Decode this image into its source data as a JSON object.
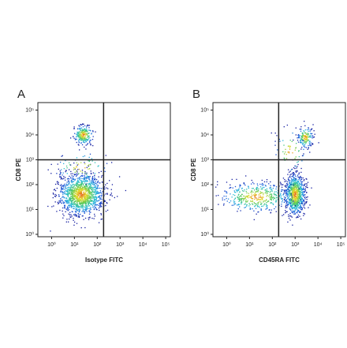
{
  "chart_data": [
    {
      "type": "scatter",
      "panel_label": "A",
      "xlabel": "Isotype FITC",
      "ylabel": "CD8 PE",
      "log_x": true,
      "log_y": true,
      "xlim": [
        0.25,
        160000
      ],
      "ylim": [
        0.8,
        200000
      ],
      "xticks": [
        {
          "value": 1,
          "label": "10⁰"
        },
        {
          "value": 10,
          "label": "10¹"
        },
        {
          "value": 100,
          "label": "10²"
        },
        {
          "value": 1000,
          "label": "10³"
        },
        {
          "value": 10000,
          "label": "10⁴"
        },
        {
          "value": 100000,
          "label": "10⁵"
        }
      ],
      "yticks": [
        {
          "value": 1,
          "label": "10⁰"
        },
        {
          "value": 10,
          "label": "10¹"
        },
        {
          "value": 100,
          "label": "10²"
        },
        {
          "value": 1000,
          "label": "10³"
        },
        {
          "value": 10000,
          "label": "10⁴"
        },
        {
          "value": 100000,
          "label": "10⁵"
        }
      ],
      "quadrant_x": 190,
      "quadrant_y": 1000
    },
    {
      "type": "scatter",
      "panel_label": "B",
      "xlabel": "CD45RA FITC",
      "ylabel": "CD8 PE",
      "log_x": true,
      "log_y": true,
      "xlim": [
        0.25,
        160000
      ],
      "ylim": [
        0.8,
        200000
      ],
      "xticks": [
        {
          "value": 1,
          "label": "10⁰"
        },
        {
          "value": 10,
          "label": "10¹"
        },
        {
          "value": 100,
          "label": "10²"
        },
        {
          "value": 1000,
          "label": "10³"
        },
        {
          "value": 10000,
          "label": "10⁴"
        },
        {
          "value": 100000,
          "label": "10⁵"
        }
      ],
      "yticks": [
        {
          "value": 1,
          "label": "10⁰"
        },
        {
          "value": 10,
          "label": "10¹"
        },
        {
          "value": 100,
          "label": "10²"
        },
        {
          "value": 1000,
          "label": "10³"
        },
        {
          "value": 10000,
          "label": "10⁴"
        },
        {
          "value": 100000,
          "label": "10⁵"
        }
      ],
      "quadrant_x": 190,
      "quadrant_y": 1000
    }
  ]
}
